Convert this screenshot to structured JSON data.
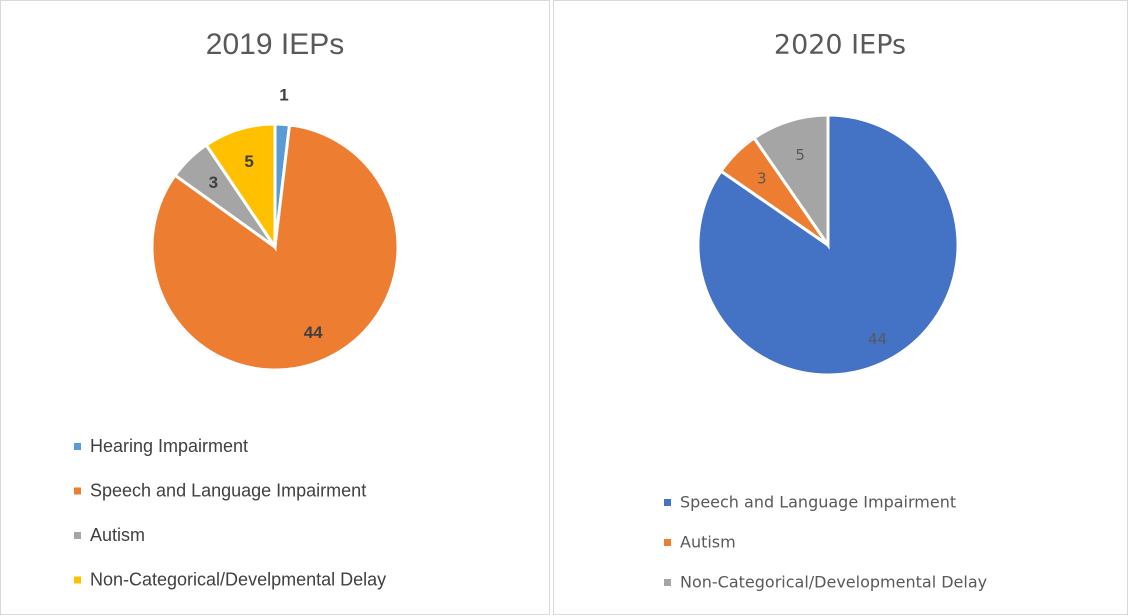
{
  "chart_data": [
    {
      "type": "pie",
      "title": "2019 IEPs",
      "categories": [
        "Hearing Impairment",
        "Speech and Language Impairment",
        "Autism",
        "Non-Categorical/Develpmental Delay"
      ],
      "values": [
        1,
        44,
        3,
        5
      ],
      "colors": [
        "#5b9bd5",
        "#ed7d31",
        "#a5a5a5",
        "#ffc000"
      ],
      "legend": "bottom"
    },
    {
      "type": "pie",
      "title": "2020 IEPs",
      "categories": [
        "Speech and Language Impairment",
        "Autism",
        "Non-Categorical/Developmental Delay"
      ],
      "values": [
        44,
        3,
        5
      ],
      "colors": [
        "#4472c4",
        "#ed7d31",
        "#a5a5a5"
      ],
      "legend": "bottom"
    }
  ]
}
